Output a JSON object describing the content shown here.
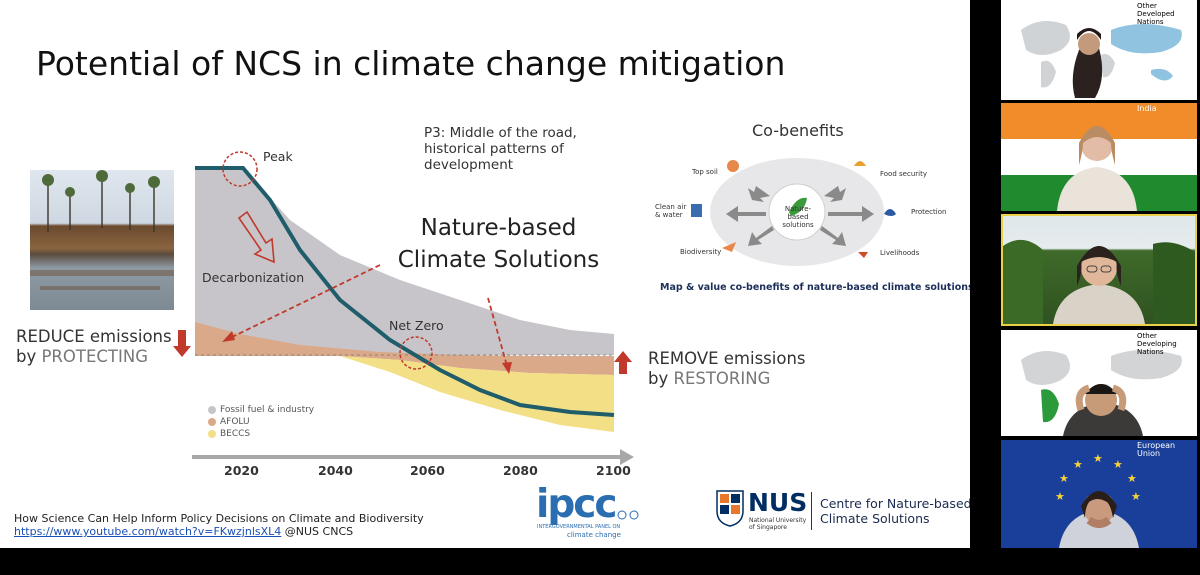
{
  "slide": {
    "title": "Potential of NCS in climate change mitigation",
    "peak_label": "Peak",
    "decarbonization_label": "Decarbonization",
    "net_zero_label": "Net Zero",
    "p3_text": "P3: Middle of the road, historical patterns of development",
    "nbcs_text": "Nature-based Climate Solutions",
    "reduce": {
      "line1": "REDUCE emissions",
      "by": "by ",
      "verb": "PROTECTING"
    },
    "remove": {
      "line1": "REMOVE emissions",
      "by": "by ",
      "verb": "RESTORING"
    },
    "legend": [
      "Fossil fuel & industry",
      "AFOLU",
      "BECCS"
    ],
    "x_ticks": [
      "2020",
      "2040",
      "2060",
      "2080",
      "2100"
    ],
    "cobenefits": {
      "title": "Co-benefits",
      "center": "Nature-based solutions",
      "items": [
        "Top soil",
        "Food security",
        "Clean air & water",
        "Protection",
        "Biodiversity",
        "Livelihoods"
      ],
      "caption": "Map & value co-benefits of nature-based climate solutions"
    },
    "footer": {
      "line1": "How Science Can Help Inform Policy Decisions on Climate and Biodiversity",
      "link": "https://www.youtube.com/watch?v=FKwzjnlsXL4",
      "credit": " @NUS CNCS"
    },
    "logos": {
      "ipcc": "ipcc",
      "ipcc_sub": "INTERGOVERNMENTAL PANEL ON",
      "ipcc_sub2": "climate change",
      "nus": "NUS",
      "nus_sub": "National University of Singapore",
      "cncs_line1": "Centre for Nature-based",
      "cncs_line2": "Climate Solutions"
    }
  },
  "participants": [
    {
      "label": "Other Developed Nations"
    },
    {
      "label": "India"
    },
    {
      "label": ""
    },
    {
      "label": "Other Developing Nations"
    },
    {
      "label": "European Union"
    }
  ],
  "chart_data": {
    "type": "area",
    "x": [
      2010,
      2020,
      2030,
      2040,
      2050,
      2060,
      2070,
      2080,
      2090,
      2100
    ],
    "series": [
      {
        "name": "Fossil fuel & industry",
        "color": "#c7c5c9"
      },
      {
        "name": "AFOLU",
        "color": "#d9a98a"
      },
      {
        "name": "BECCS",
        "color": "#f2df86"
      }
    ],
    "net_emissions_line": {
      "color": "#1f5d6b"
    },
    "x_ticks": [
      2020,
      2040,
      2060,
      2080,
      2100
    ],
    "xlabel": "",
    "ylabel": ""
  }
}
